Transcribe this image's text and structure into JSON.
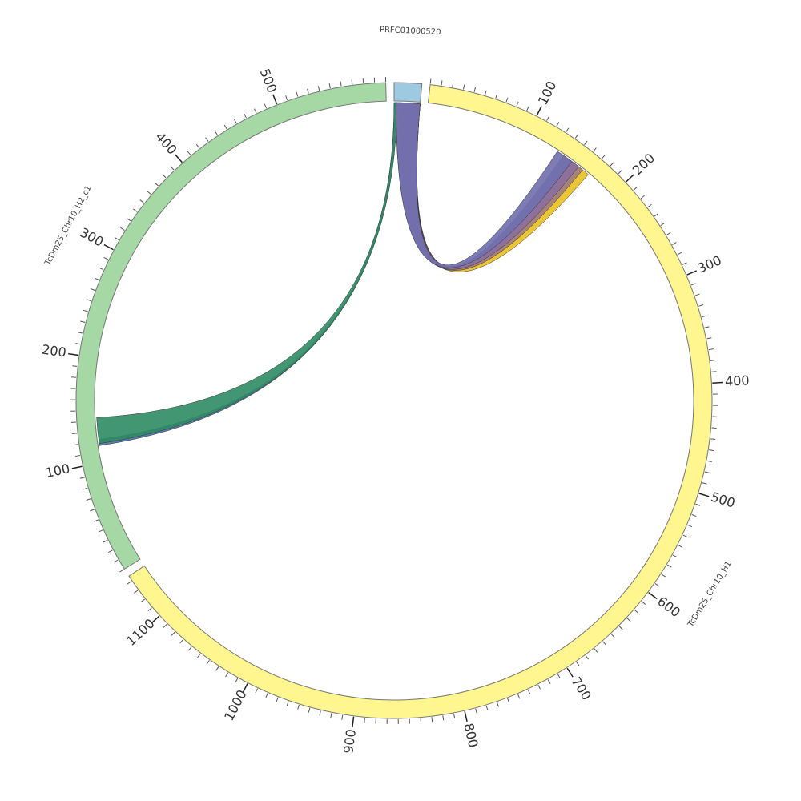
{
  "chart_data": {
    "type": "chord",
    "minor_tick_step": 10,
    "segments": [
      {
        "name": "PRFC01000520",
        "length": 25,
        "color": "#9ecae1",
        "ticks": []
      },
      {
        "name": "TcDm25_Chr10_H1",
        "length": 1145,
        "color": "#fff68f",
        "ticks": [
          100,
          200,
          300,
          400,
          500,
          600,
          700,
          800,
          900,
          1000,
          1100
        ]
      },
      {
        "name": "TcDm25_Chr10_H2_c1",
        "length": 600,
        "color": "#a5d8a5",
        "ticks": [
          100,
          200,
          300,
          400,
          500
        ]
      }
    ],
    "links": [
      {
        "source": {
          "segment": "PRFC01000520",
          "start": 0,
          "end": 2
        },
        "target": {
          "segment": "TcDm25_Chr10_H2_c1",
          "start": 116,
          "end": 122
        },
        "color": "#4a6fa5"
      },
      {
        "source": {
          "segment": "PRFC01000520",
          "start": 0,
          "end": 3
        },
        "target": {
          "segment": "TcDm25_Chr10_H2_c1",
          "start": 118,
          "end": 143
        },
        "color": "#2e8b62"
      },
      {
        "source": {
          "segment": "PRFC01000520",
          "start": 10,
          "end": 25
        },
        "target": {
          "segment": "TcDm25_Chr10_H1",
          "start": 152,
          "end": 170
        },
        "color": "#e8c020"
      },
      {
        "source": {
          "segment": "PRFC01000520",
          "start": 5,
          "end": 25
        },
        "target": {
          "segment": "TcDm25_Chr10_H1",
          "start": 148,
          "end": 163
        },
        "color": "#a07a80"
      },
      {
        "source": {
          "segment": "PRFC01000520",
          "start": 2,
          "end": 25
        },
        "target": {
          "segment": "TcDm25_Chr10_H1",
          "start": 140,
          "end": 158
        },
        "color": "#8b6f9e"
      },
      {
        "source": {
          "segment": "PRFC01000520",
          "start": 2,
          "end": 25
        },
        "target": {
          "segment": "TcDm25_Chr10_H1",
          "start": 133,
          "end": 150
        },
        "color": "#6f6fae"
      }
    ]
  }
}
